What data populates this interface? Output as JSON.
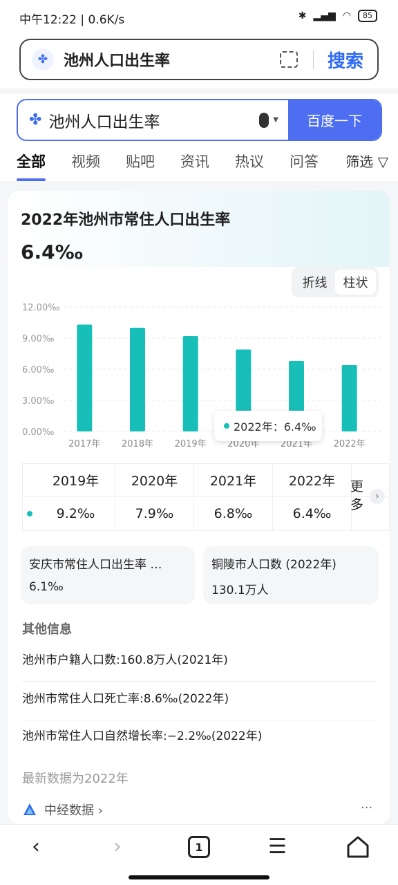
{
  "status": {
    "time_speed": "中午12:22 | 0.6K/s",
    "battery": "85"
  },
  "topbar": {
    "query": "池州人口出生率",
    "search_label": "搜索"
  },
  "searchbox": {
    "query": "池州人口出生率",
    "button_label": "百度一下"
  },
  "tabs": [
    "全部",
    "视频",
    "贴吧",
    "资讯",
    "热议",
    "问答"
  ],
  "filter_label": "筛选",
  "card": {
    "title": "2022年池州市常住人口出生率",
    "value": "6.4‰",
    "toggle": {
      "line": "折线",
      "bar": "柱状"
    },
    "tooltip": "2022年：6.4‰",
    "table": {
      "years": [
        "2019年",
        "2020年",
        "2021年",
        "2022年"
      ],
      "values": [
        "9.2‰",
        "7.9‰",
        "6.8‰",
        "6.4‰"
      ],
      "more": "更多"
    },
    "related": [
      {
        "title": "安庆市常住人口出生率 …",
        "value": "6.1‰"
      },
      {
        "title": "铜陵市人口数 (2022年)",
        "value": "130.1万人"
      }
    ],
    "other_title": "其他信息",
    "other_items": [
      "池州市户籍人口数:160.8万人(2021年)",
      "池州市常住人口死亡率:8.6‰(2022年)",
      "池州市常住人口自然增长率:−2.2‰(2022年)"
    ],
    "latest_note": "最新数据为2022年",
    "source": "中经数据 ›",
    "source_more": "···"
  },
  "chart_data": {
    "type": "bar",
    "categories": [
      "2017年",
      "2018年",
      "2019年",
      "2020年",
      "2021年",
      "2022年"
    ],
    "values": [
      10.3,
      10.0,
      9.2,
      7.9,
      6.8,
      6.4
    ],
    "ylim": [
      0,
      12
    ],
    "yticks": [
      "0.00‰",
      "3.00‰",
      "6.00‰",
      "9.00‰",
      "12.00‰"
    ],
    "grid": true,
    "color": "#17bfb8"
  },
  "nav": {
    "tab_count": "1"
  }
}
